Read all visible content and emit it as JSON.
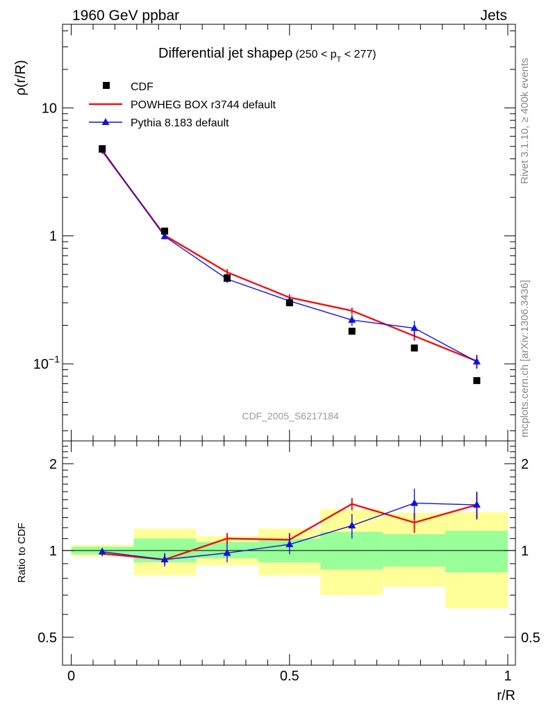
{
  "header": {
    "left": "1960 GeV ppbar",
    "right": "Jets"
  },
  "side_labels": {
    "rivet": "Rivet 3.1.10, ≥ 400k events",
    "mcplots": "mcplots.cern.ch [arXiv:1306.3436]"
  },
  "watermark": "CDF_2005_S6217184",
  "colors": {
    "data": "#000000",
    "powheg": "#ee1111",
    "pythia": "#1111dd",
    "band_outer": "#ffff99",
    "band_inner": "#99ff99"
  },
  "chart_data": [
    {
      "type": "scatter",
      "title": "Differential jet shapeρ",
      "title_suffix": "(250 < p",
      "title_sub": "T",
      "title_tail": " < 277)",
      "ylabel": "ρ(r/R)",
      "yscale": "log",
      "ylim": [
        0.025,
        45
      ],
      "xlim": [
        0,
        1
      ],
      "y_ticks": [
        {
          "value": 10,
          "label": "10"
        },
        {
          "value": 1,
          "label": "1"
        },
        {
          "value": 0.1,
          "label": "10",
          "sup": "−1"
        }
      ],
      "legend": [
        {
          "label": "CDF",
          "style": "marker-square"
        },
        {
          "label": "POWHEG BOX r3744 default",
          "style": "line-red"
        },
        {
          "label": "Pythia 8.183 default",
          "style": "line-triangle-blue"
        }
      ],
      "x": [
        0.071,
        0.214,
        0.357,
        0.5,
        0.643,
        0.786,
        0.929
      ],
      "series": [
        {
          "name": "CDF",
          "values": [
            4.8,
            1.09,
            0.47,
            0.3,
            0.18,
            0.133,
            0.074
          ]
        },
        {
          "name": "POWHEG BOX r3744 default",
          "values": [
            4.6,
            1.01,
            0.52,
            0.33,
            0.26,
            0.165,
            0.105
          ],
          "err": [
            0.05,
            0.05,
            0.06,
            0.06,
            0.06,
            0.08,
            0.12
          ]
        },
        {
          "name": "Pythia 8.183 default",
          "values": [
            4.7,
            0.99,
            0.46,
            0.31,
            0.22,
            0.19,
            0.104
          ],
          "err": [
            0.05,
            0.05,
            0.07,
            0.07,
            0.1,
            0.14,
            0.12
          ]
        }
      ]
    },
    {
      "type": "line",
      "ylabel": "Ratio to CDF",
      "xlabel": "r/R",
      "yscale": "log",
      "ylim": [
        0.4,
        2.4
      ],
      "xlim": [
        0,
        1
      ],
      "y_ticks": [
        {
          "value": 2,
          "label": "2"
        },
        {
          "value": 1,
          "label": "1"
        },
        {
          "value": 0.5,
          "label": "0.5"
        }
      ],
      "x_ticks": [
        {
          "value": 0,
          "label": "0"
        },
        {
          "value": 0.5,
          "label": "0.5"
        },
        {
          "value": 1,
          "label": "1"
        }
      ],
      "x": [
        0.071,
        0.214,
        0.357,
        0.5,
        0.643,
        0.786,
        0.929
      ],
      "bands": [
        {
          "x0": 0,
          "x1": 0.143,
          "outer": [
            0.955,
            1.045
          ],
          "inner": [
            0.97,
            1.03
          ]
        },
        {
          "x0": 0.143,
          "x1": 0.286,
          "outer": [
            0.82,
            1.19
          ],
          "inner": [
            0.91,
            1.1
          ]
        },
        {
          "x0": 0.286,
          "x1": 0.429,
          "outer": [
            0.89,
            1.12
          ],
          "inner": [
            0.94,
            1.07
          ]
        },
        {
          "x0": 0.429,
          "x1": 0.571,
          "outer": [
            0.82,
            1.19
          ],
          "inner": [
            0.91,
            1.1
          ]
        },
        {
          "x0": 0.571,
          "x1": 0.714,
          "outer": [
            0.7,
            1.39
          ],
          "inner": [
            0.86,
            1.16
          ]
        },
        {
          "x0": 0.714,
          "x1": 0.857,
          "outer": [
            0.75,
            1.35
          ],
          "inner": [
            0.88,
            1.14
          ]
        },
        {
          "x0": 0.857,
          "x1": 1.0,
          "outer": [
            0.63,
            1.36
          ],
          "inner": [
            0.84,
            1.17
          ]
        }
      ],
      "series": [
        {
          "name": "POWHEG BOX r3744 default",
          "values": [
            0.975,
            0.93,
            1.1,
            1.09,
            1.45,
            1.25,
            1.44
          ],
          "err": [
            0.02,
            0.04,
            0.05,
            0.06,
            0.07,
            0.1,
            0.15
          ]
        },
        {
          "name": "Pythia 8.183 default",
          "values": [
            0.99,
            0.93,
            0.98,
            1.05,
            1.22,
            1.46,
            1.44
          ],
          "err": [
            0.02,
            0.05,
            0.07,
            0.08,
            0.12,
            0.18,
            0.16
          ]
        }
      ]
    }
  ]
}
